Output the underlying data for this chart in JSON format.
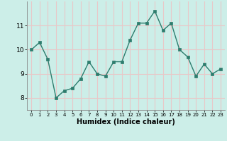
{
  "x": [
    0,
    1,
    2,
    3,
    4,
    5,
    6,
    7,
    8,
    9,
    10,
    11,
    12,
    13,
    14,
    15,
    16,
    17,
    18,
    19,
    20,
    21,
    22,
    23
  ],
  "y": [
    10.0,
    10.3,
    9.6,
    8.0,
    8.3,
    8.4,
    8.8,
    9.5,
    9.0,
    8.9,
    9.5,
    9.5,
    10.4,
    11.1,
    11.1,
    11.6,
    10.8,
    11.1,
    10.0,
    9.7,
    8.9,
    9.4,
    9.0,
    9.2
  ],
  "xlabel": "Humidex (Indice chaleur)",
  "line_color": "#2e7d6e",
  "bg_color": "#cceee8",
  "grid_color": "#e8c8c8",
  "xlim": [
    -0.5,
    23.5
  ],
  "ylim": [
    7.5,
    12.0
  ],
  "yticks": [
    8,
    9,
    10,
    11
  ],
  "xtick_labels": [
    "0",
    "1",
    "2",
    "3",
    "4",
    "5",
    "6",
    "7",
    "8",
    "9",
    "10",
    "11",
    "12",
    "13",
    "14",
    "15",
    "16",
    "17",
    "18",
    "19",
    "20",
    "21",
    "22",
    "23"
  ],
  "marker_size": 2.5,
  "linewidth": 1.0,
  "xlabel_fontsize": 7,
  "ytick_fontsize": 6.5,
  "xtick_fontsize": 5.0
}
